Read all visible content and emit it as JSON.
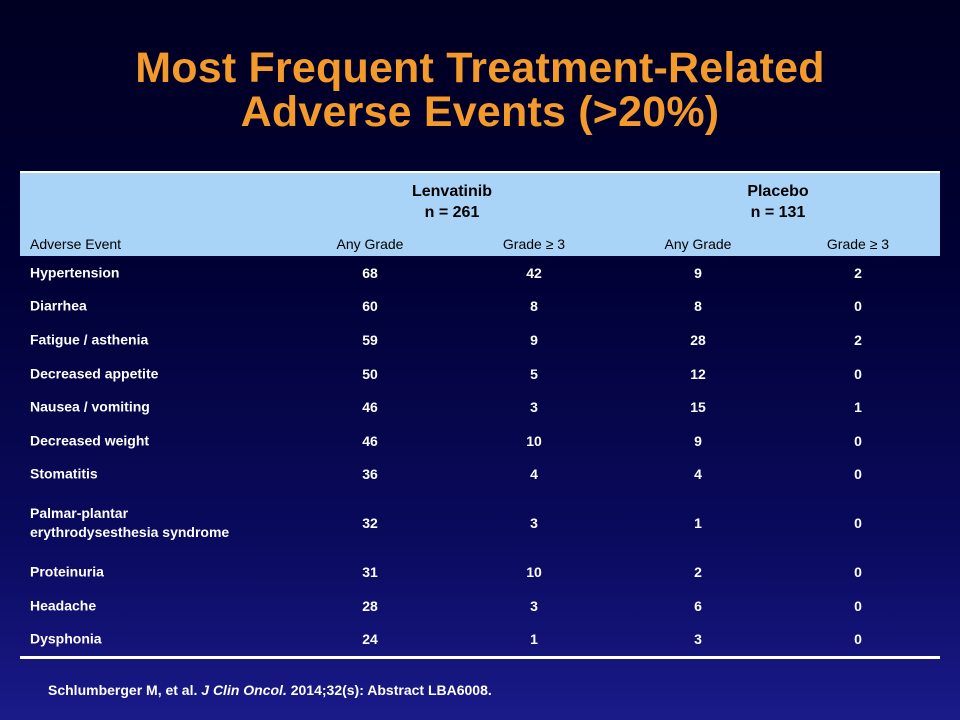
{
  "title": {
    "line1": "Most Frequent Treatment-Related",
    "line2": "Adverse Events (>20%)"
  },
  "table": {
    "groups": [
      {
        "name": "Lenvatinib",
        "n": "n = 261"
      },
      {
        "name": "Placebo",
        "n": "n = 131"
      }
    ],
    "columns": [
      "Adverse Event",
      "Any Grade",
      "Grade ≥ 3",
      "Any Grade",
      "Grade ≥ 3"
    ],
    "rows": [
      {
        "event": "Hypertension",
        "v1": "68",
        "v2": "42",
        "v3": "9",
        "v4": "2"
      },
      {
        "event": "Diarrhea",
        "v1": "60",
        "v2": "8",
        "v3": "8",
        "v4": "0"
      },
      {
        "event": "Fatigue / asthenia",
        "v1": "59",
        "v2": "9",
        "v3": "28",
        "v4": "2"
      },
      {
        "event": "Decreased appetite",
        "v1": "50",
        "v2": "5",
        "v3": "12",
        "v4": "0"
      },
      {
        "event": "Nausea / vomiting",
        "v1": "46",
        "v2": "3",
        "v3": "15",
        "v4": "1"
      },
      {
        "event": "Decreased weight",
        "v1": "46",
        "v2": "10",
        "v3": "9",
        "v4": "0"
      },
      {
        "event": "Stomatitis",
        "v1": "36",
        "v2": "4",
        "v3": "4",
        "v4": "0"
      },
      {
        "event": "Palmar-plantar",
        "event2": "erythrodysesthesia syndrome",
        "v1": "32",
        "v2": "3",
        "v3": "1",
        "v4": "0"
      },
      {
        "event": "Proteinuria",
        "v1": "31",
        "v2": "10",
        "v3": "2",
        "v4": "0"
      },
      {
        "event": "Headache",
        "v1": "28",
        "v2": "3",
        "v3": "6",
        "v4": "0"
      },
      {
        "event": "Dysphonia",
        "v1": "24",
        "v2": "1",
        "v3": "3",
        "v4": "0"
      }
    ]
  },
  "citation": {
    "authors": "Schlumberger M, et al.",
    "journal": "J Clin Oncol.",
    "rest": "2014;32(s): Abstract LBA6008."
  },
  "colors": {
    "title": "#f39a2b",
    "header_bg": "#a9d3f7",
    "background_top": "#000022",
    "background_bottom": "#1a1a8a"
  }
}
